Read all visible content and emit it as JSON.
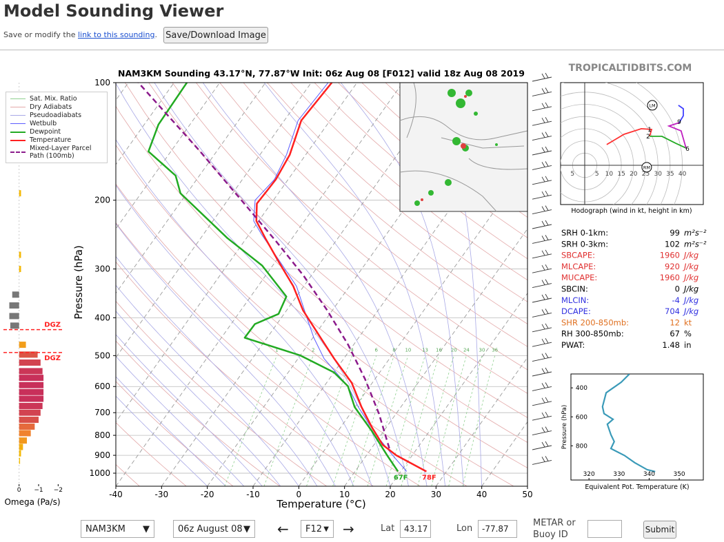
{
  "header": {
    "title": "Model Sounding Viewer",
    "save_text": "Save or modify the",
    "link_text": "link to this sounding",
    "save_end": ".",
    "button": "Save/Download Image"
  },
  "brand": "TROPICALTIDBITS.COM",
  "chart_data": [
    {
      "type": "skewt",
      "title": "NAM3KM Sounding 43.17°N, 77.87°W Init: 06z Aug 08 [F012] valid 18z Aug 08 2019",
      "xlabel": "Temperature (°C)",
      "ylabel": "Pressure (hPa)",
      "xlim": [
        -40,
        50
      ],
      "xticks": [
        -40,
        -30,
        -20,
        -10,
        0,
        10,
        20,
        30,
        40,
        50
      ],
      "ylim": [
        1080,
        100
      ],
      "yticks": [
        100,
        200,
        300,
        400,
        500,
        600,
        700,
        800,
        900,
        1000
      ],
      "log_y": true,
      "background_lines": [
        {
          "name": "Sat. Mix. Ratio",
          "color": "#8fd08f"
        },
        {
          "name": "Dry Adiabats",
          "color": "#e3a8a8"
        },
        {
          "name": "Pseudoadiabats",
          "color": "#a8a8e6"
        }
      ],
      "mixing_ratios": [
        1,
        2,
        4,
        6,
        8,
        10,
        13,
        16,
        20,
        24,
        30,
        36
      ],
      "series": [
        {
          "name": "Wetbulb",
          "color": "#5b5bff",
          "linewidth": 1,
          "pressure": [
            990,
            900,
            796,
            677,
            599,
            509,
            450,
            399,
            332,
            277,
            245,
            226,
            200,
            177,
            153,
            125,
            100
          ],
          "values": [
            21.3,
            15.7,
            8.8,
            0.7,
            -4.8,
            -14.3,
            -19.8,
            -24.5,
            -31.6,
            -40.9,
            -47.2,
            -51.1,
            -54.0,
            -53.0,
            -54.2,
            -57.0,
            -56.3
          ]
        },
        {
          "name": "Dewpoint",
          "color": "#22aa22",
          "linewidth": 2.5,
          "surface_label": "67F",
          "pressure": [
            990,
            900,
            780,
            677,
            599,
            552,
            499,
            450,
            415,
            391,
            353,
            294,
            250,
            192,
            173,
            150,
            128,
            100
          ],
          "values": [
            19.4,
            14.5,
            7.4,
            -0.1,
            -4.8,
            -10.0,
            -20.1,
            -34.9,
            -34.8,
            -31.2,
            -32.2,
            -42.3,
            -54.2,
            -71.4,
            -75.2,
            -84.9,
            -86.9,
            -87.2
          ]
        },
        {
          "name": "Temperature",
          "color": "#ff2020",
          "linewidth": 2.5,
          "surface_label": "78F",
          "pressure": [
            990,
            900,
            846,
            764,
            677,
            587,
            509,
            450,
            383,
            332,
            288,
            250,
            226,
            204,
            192,
            177,
            153,
            125,
            100
          ],
          "values": [
            25.6,
            16.5,
            11.9,
            6.9,
            1.4,
            -4.5,
            -12.1,
            -18.3,
            -26.4,
            -32.3,
            -39.2,
            -45.9,
            -50.5,
            -53.1,
            -52.9,
            -52.7,
            -53.5,
            -56.3,
            -55.5
          ]
        },
        {
          "name": "Mixed-Layer Parcel Path (100mb)",
          "color": "#8b1a8b",
          "linewidth": 2.5,
          "linestyle": "dashed",
          "pressure": [
            864,
            705,
            575,
            469,
            383,
            312,
            255,
            200,
            150,
            100
          ],
          "values": [
            13.9,
            6.3,
            -2.1,
            -11.2,
            -21.1,
            -31.7,
            -43.0,
            -57.0,
            -73.6,
            -97.8
          ]
        }
      ]
    },
    {
      "type": "omega",
      "xlabel": "Omega (Pa/s)",
      "xlim": [
        0.8,
        -2.2
      ],
      "xticks": [
        0,
        {
          "value": -1,
          "label": "−1"
        },
        {
          "value": -2,
          "label": "−2"
        }
      ],
      "pressure": [
        192,
        276,
        300,
        349,
        372,
        396,
        419,
        469,
        497,
        521,
        548,
        570,
        595,
        620,
        645,
        673,
        700,
        730,
        760,
        790,
        825,
        857,
        890,
        930
      ],
      "values": [
        -0.1,
        -0.1,
        -0.1,
        0.35,
        0.5,
        0.5,
        0.45,
        -0.35,
        -0.95,
        -1.1,
        -1.2,
        -1.25,
        -1.25,
        -1.25,
        -1.25,
        -1.2,
        -1.1,
        -1.0,
        -0.8,
        -0.6,
        -0.4,
        -0.2,
        -0.1,
        -0.05
      ],
      "dgz": {
        "label": "DGZ",
        "levels": [
          429,
          491
        ],
        "color": "#ff2020"
      }
    },
    {
      "type": "hodograph",
      "title": "Hodograph (wind in kt, height in km)",
      "ring_ticks": [
        5,
        10,
        15,
        20,
        25,
        30,
        35,
        40
      ],
      "segments": [
        {
          "color": "#ff3030",
          "u": [
            9.0,
            16.1,
            23.2,
            27.4,
            26.6
          ],
          "v": [
            8.5,
            12.7,
            15.0,
            14.7,
            11.9
          ]
        },
        {
          "color": "#22aa22",
          "u": [
            26.6,
            31.6,
            37.3,
            41.5
          ],
          "v": [
            11.9,
            11.9,
            9.0,
            7.1
          ]
        },
        {
          "color": "#c020c0",
          "u": [
            41.5,
            39.5,
            34.5,
            38.7
          ],
          "v": [
            7.1,
            14.1,
            16.1,
            17.5
          ]
        },
        {
          "color": "#4040ff",
          "u": [
            38.7,
            40.4,
            40.4,
            38.4
          ],
          "v": [
            17.5,
            20.3,
            23.2,
            24.6
          ]
        }
      ],
      "height_labels": [
        {
          "label": "1",
          "u": 26.6,
          "v": 14.7
        },
        {
          "label": "2",
          "u": 26.0,
          "v": 11.9
        },
        {
          "label": "6",
          "u": 42.1,
          "v": 6.8
        },
        {
          "label": "9",
          "u": 38.7,
          "v": 17.8
        }
      ],
      "storm_motions": [
        {
          "label": "LM",
          "u": 27.7,
          "v": 24.6
        },
        {
          "label": "RM",
          "u": 25.4,
          "v": -0.8
        }
      ]
    },
    {
      "type": "line",
      "xlabel": "Equivalent Pot. Temperature (K)",
      "ylabel": "Pressure (hPa)",
      "color": "#3a9ab8",
      "xlim": [
        314,
        358
      ],
      "xticks": [
        320,
        330,
        340,
        350
      ],
      "ylim": [
        1036,
        304
      ],
      "yticks": [
        400,
        600,
        800
      ],
      "pressure": [
        305,
        361,
        434,
        530,
        578,
        617,
        651,
        723,
        771,
        819,
        867,
        916,
        964,
        978
      ],
      "values": [
        333.4,
        330.7,
        325.7,
        324.5,
        325.0,
        328.0,
        326.1,
        327.3,
        328.4,
        327.3,
        331.8,
        335.2,
        339.3,
        342.0
      ]
    }
  ],
  "stats": {
    "rows": [
      {
        "label": "SRH 0-1km:",
        "value": 99,
        "unit": "m²s⁻²",
        "color": "#000000"
      },
      {
        "label": "SRH 0-3km:",
        "value": 102,
        "unit": "m²s⁻²",
        "color": "#000000"
      },
      {
        "label": "SBCAPE:",
        "value": 1960,
        "unit": "J/kg",
        "color": "#e03030"
      },
      {
        "label": "MLCAPE:",
        "value": 920,
        "unit": "J/kg",
        "color": "#e03030"
      },
      {
        "label": "MUCAPE:",
        "value": 1960,
        "unit": "J/kg",
        "color": "#e03030"
      },
      {
        "label": "SBCIN:",
        "value": 0,
        "unit": "J/kg",
        "color": "#000000"
      },
      {
        "label": "MLCIN:",
        "value": -4,
        "unit": "J/kg",
        "color": "#3030e0"
      },
      {
        "label": "DCAPE:",
        "value": 704,
        "unit": "J/kg",
        "color": "#3030e0"
      },
      {
        "label": "SHR 200-850mb:",
        "value": 12,
        "unit": "kt",
        "color": "#e07020"
      },
      {
        "label": "RH 300-850mb:",
        "value": 67,
        "unit": "%",
        "color": "#000000"
      },
      {
        "label": "PWAT:",
        "value": 1.48,
        "unit": "in",
        "color": "#000000"
      }
    ]
  },
  "controls": {
    "model": "NAM3KM",
    "run": "06z August 08",
    "forecast": "F12",
    "lat_label": "Lat",
    "lat": 43.17,
    "lon_label": "Lon",
    "lon": -77.87,
    "station_label": "METAR or Buoy ID",
    "submit": "Submit"
  }
}
